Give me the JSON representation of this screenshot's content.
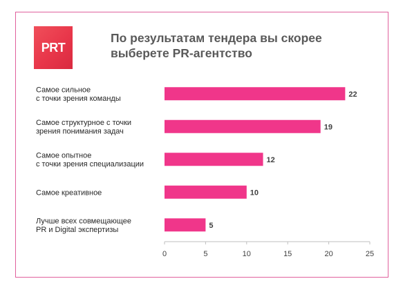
{
  "logo_text": "PRT",
  "chart_data": {
    "type": "bar",
    "orientation": "horizontal",
    "title": "По результатам тендера вы скорее выберете PR-агентство",
    "categories": [
      [
        "Самое сильное",
        "с точки зрения команды"
      ],
      [
        "Самое структурное с точки",
        "зрения понимания задач"
      ],
      [
        "Самое опытное",
        "с точки зрения специализации"
      ],
      [
        "Самое креативное"
      ],
      [
        "Лучше всех совмещающее",
        "PR и Digital экспертизы"
      ]
    ],
    "values": [
      22,
      19,
      12,
      10,
      5
    ],
    "xlim": [
      0,
      25
    ],
    "xticks": [
      0,
      5,
      10,
      15,
      20,
      25
    ],
    "grid": false,
    "bar_color": "#f0368a",
    "frame_color": "#e0609c"
  }
}
